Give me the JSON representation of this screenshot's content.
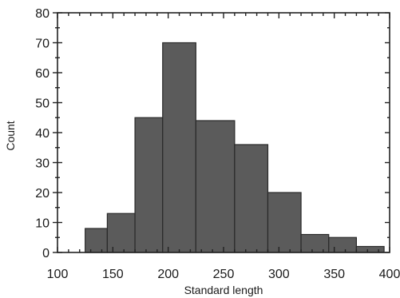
{
  "chart_data": {
    "type": "bar",
    "xlabel": "Standard length",
    "ylabel": "Count",
    "xlim": [
      100,
      400
    ],
    "ylim": [
      0,
      80
    ],
    "x_ticks": [
      100,
      150,
      200,
      250,
      300,
      350,
      400
    ],
    "y_ticks": [
      0,
      10,
      20,
      30,
      40,
      50,
      60,
      70,
      80
    ],
    "bins": [
      {
        "start": 125,
        "end": 145,
        "count": 8
      },
      {
        "start": 145,
        "end": 170,
        "count": 13
      },
      {
        "start": 170,
        "end": 195,
        "count": 45
      },
      {
        "start": 195,
        "end": 225,
        "count": 70
      },
      {
        "start": 225,
        "end": 260,
        "count": 44
      },
      {
        "start": 260,
        "end": 290,
        "count": 36
      },
      {
        "start": 290,
        "end": 320,
        "count": 20
      },
      {
        "start": 320,
        "end": 345,
        "count": 6
      },
      {
        "start": 345,
        "end": 370,
        "count": 5
      },
      {
        "start": 370,
        "end": 395,
        "count": 2
      }
    ],
    "grid": false,
    "legend": "none"
  }
}
